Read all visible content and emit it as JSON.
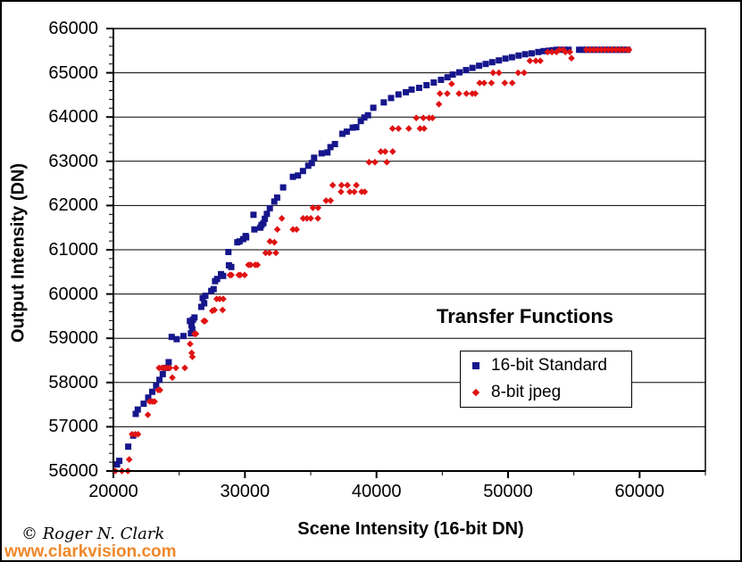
{
  "chart_data": {
    "type": "scatter",
    "title": "Transfer Functions",
    "xlabel": "Scene Intensity (16-bit DN)",
    "ylabel": "Output Intensity (DN)",
    "xlim": [
      20000,
      65000
    ],
    "ylim": [
      56000,
      66000
    ],
    "xticks": [
      20000,
      30000,
      40000,
      50000,
      60000
    ],
    "yticks": [
      56000,
      57000,
      58000,
      59000,
      60000,
      61000,
      62000,
      63000,
      64000,
      65000,
      66000
    ],
    "x_minor_step": 5000,
    "y_minor_step": 200,
    "grid": "horizontal-major",
    "legend_position": "inside-right",
    "plot_bg": "#ffffff",
    "series": [
      {
        "name": "16-bit Standard",
        "marker": "square",
        "color": "#16168c",
        "points": [
          [
            20280,
            56150
          ],
          [
            20450,
            56230
          ],
          [
            21130,
            56550
          ],
          [
            21510,
            56800
          ],
          [
            21700,
            57290
          ],
          [
            21850,
            57390
          ],
          [
            22300,
            57520
          ],
          [
            22650,
            57660
          ],
          [
            22950,
            57790
          ],
          [
            23250,
            57930
          ],
          [
            23500,
            58060
          ],
          [
            23750,
            58190
          ],
          [
            24000,
            58330
          ],
          [
            24200,
            58460
          ],
          [
            24430,
            59030
          ],
          [
            24810,
            58980
          ],
          [
            25330,
            59050
          ],
          [
            25820,
            59390
          ],
          [
            25890,
            59110
          ],
          [
            25940,
            59290
          ],
          [
            26000,
            59200
          ],
          [
            26050,
            59420
          ],
          [
            26160,
            59470
          ],
          [
            26680,
            59710
          ],
          [
            26790,
            59910
          ],
          [
            26900,
            59790
          ],
          [
            26990,
            59960
          ],
          [
            27440,
            60070
          ],
          [
            27620,
            60110
          ],
          [
            27730,
            60290
          ],
          [
            27890,
            60340
          ],
          [
            28180,
            60450
          ],
          [
            28340,
            60410
          ],
          [
            28740,
            60950
          ],
          [
            28780,
            60650
          ],
          [
            28960,
            60610
          ],
          [
            29420,
            61170
          ],
          [
            29590,
            61190
          ],
          [
            29860,
            61240
          ],
          [
            30050,
            61310
          ],
          [
            30090,
            61280
          ],
          [
            30650,
            61790
          ],
          [
            30720,
            61460
          ],
          [
            31170,
            61500
          ],
          [
            31260,
            61560
          ],
          [
            31400,
            61600
          ],
          [
            31510,
            61700
          ],
          [
            31670,
            61810
          ],
          [
            31890,
            61940
          ],
          [
            32230,
            62090
          ],
          [
            32450,
            62180
          ],
          [
            32900,
            62410
          ],
          [
            33640,
            62650
          ],
          [
            34030,
            62680
          ],
          [
            34410,
            62780
          ],
          [
            34810,
            62900
          ],
          [
            35080,
            62960
          ],
          [
            35260,
            63080
          ],
          [
            35830,
            63180
          ],
          [
            36270,
            63200
          ],
          [
            36500,
            63320
          ],
          [
            36840,
            63390
          ],
          [
            37400,
            63620
          ],
          [
            37740,
            63670
          ],
          [
            38190,
            63760
          ],
          [
            38460,
            63770
          ],
          [
            38810,
            63910
          ],
          [
            39080,
            63990
          ],
          [
            39350,
            64040
          ],
          [
            39760,
            64210
          ],
          [
            40550,
            64330
          ],
          [
            41110,
            64430
          ],
          [
            41670,
            64510
          ],
          [
            42230,
            64560
          ],
          [
            42670,
            64620
          ],
          [
            43240,
            64660
          ],
          [
            43800,
            64720
          ],
          [
            44350,
            64780
          ],
          [
            44900,
            64840
          ],
          [
            45400,
            64900
          ],
          [
            45800,
            64960
          ],
          [
            46300,
            65010
          ],
          [
            46800,
            65060
          ],
          [
            47300,
            65110
          ],
          [
            47800,
            65160
          ],
          [
            48300,
            65200
          ],
          [
            48800,
            65240
          ],
          [
            49300,
            65280
          ],
          [
            49800,
            65320
          ],
          [
            50300,
            65350
          ],
          [
            50800,
            65390
          ],
          [
            51300,
            65420
          ],
          [
            51800,
            65440
          ],
          [
            52300,
            65470
          ],
          [
            52700,
            65490
          ],
          [
            53100,
            65500
          ],
          [
            53400,
            65510
          ],
          [
            53700,
            65520
          ],
          [
            54000,
            65520
          ],
          [
            54300,
            65520
          ],
          [
            54600,
            65520
          ],
          [
            55400,
            65520
          ],
          [
            55700,
            65520
          ],
          [
            56000,
            65520
          ],
          [
            56280,
            65520
          ],
          [
            56560,
            65520
          ],
          [
            56840,
            65520
          ],
          [
            57120,
            65520
          ],
          [
            57400,
            65520
          ],
          [
            57680,
            65520
          ],
          [
            57960,
            65520
          ],
          [
            58240,
            65520
          ],
          [
            58520,
            65520
          ],
          [
            58800,
            65520
          ],
          [
            59080,
            65520
          ]
        ]
      },
      {
        "name": "8-bit jpeg",
        "marker": "diamond",
        "color": "#e01212",
        "points": [
          [
            20150,
            56000
          ],
          [
            20650,
            56000
          ],
          [
            21100,
            56000
          ],
          [
            21200,
            56260
          ],
          [
            21420,
            56830
          ],
          [
            21660,
            56830
          ],
          [
            21870,
            56830
          ],
          [
            22620,
            57270
          ],
          [
            22760,
            57570
          ],
          [
            22960,
            57570
          ],
          [
            23130,
            57570
          ],
          [
            23400,
            57830
          ],
          [
            23470,
            58330
          ],
          [
            23540,
            57830
          ],
          [
            23680,
            58330
          ],
          [
            23880,
            58330
          ],
          [
            24080,
            58330
          ],
          [
            24280,
            58330
          ],
          [
            24480,
            58110
          ],
          [
            24750,
            58330
          ],
          [
            25430,
            58330
          ],
          [
            25830,
            58870
          ],
          [
            25950,
            58670
          ],
          [
            26010,
            58580
          ],
          [
            26170,
            59100
          ],
          [
            26280,
            59100
          ],
          [
            26870,
            59390
          ],
          [
            26970,
            59390
          ],
          [
            27520,
            59620
          ],
          [
            27680,
            59640
          ],
          [
            27850,
            59890
          ],
          [
            28080,
            59890
          ],
          [
            28300,
            59640
          ],
          [
            28350,
            59890
          ],
          [
            28860,
            60430
          ],
          [
            28970,
            60430
          ],
          [
            29530,
            60430
          ],
          [
            29650,
            60430
          ],
          [
            29980,
            60430
          ],
          [
            30260,
            60660
          ],
          [
            30440,
            60660
          ],
          [
            30780,
            60660
          ],
          [
            30950,
            60660
          ],
          [
            31570,
            60930
          ],
          [
            31860,
            60930
          ],
          [
            31900,
            61190
          ],
          [
            32240,
            61170
          ],
          [
            32350,
            60930
          ],
          [
            32460,
            61460
          ],
          [
            32800,
            61710
          ],
          [
            33650,
            61460
          ],
          [
            33920,
            61460
          ],
          [
            34420,
            61710
          ],
          [
            34710,
            61710
          ],
          [
            35000,
            61710
          ],
          [
            35160,
            61950
          ],
          [
            35540,
            61710
          ],
          [
            35560,
            61950
          ],
          [
            36170,
            62110
          ],
          [
            36510,
            62110
          ],
          [
            36670,
            62460
          ],
          [
            37300,
            62310
          ],
          [
            37340,
            62460
          ],
          [
            37790,
            62460
          ],
          [
            37970,
            62310
          ],
          [
            38310,
            62310
          ],
          [
            38470,
            62460
          ],
          [
            38870,
            62310
          ],
          [
            39100,
            62310
          ],
          [
            39430,
            62980
          ],
          [
            39880,
            62980
          ],
          [
            40330,
            63220
          ],
          [
            40660,
            63220
          ],
          [
            40780,
            62980
          ],
          [
            41230,
            63220
          ],
          [
            41220,
            63740
          ],
          [
            41670,
            63740
          ],
          [
            42450,
            63740
          ],
          [
            43020,
            63980
          ],
          [
            43310,
            63740
          ],
          [
            43560,
            63980
          ],
          [
            43620,
            63740
          ],
          [
            44000,
            63980
          ],
          [
            44260,
            63980
          ],
          [
            44750,
            64290
          ],
          [
            44820,
            64530
          ],
          [
            45380,
            64530
          ],
          [
            45710,
            64750
          ],
          [
            46270,
            64530
          ],
          [
            46830,
            64530
          ],
          [
            47280,
            64530
          ],
          [
            47510,
            64530
          ],
          [
            47840,
            64770
          ],
          [
            48180,
            64770
          ],
          [
            48740,
            64770
          ],
          [
            48860,
            65000
          ],
          [
            49310,
            65000
          ],
          [
            49750,
            64770
          ],
          [
            50320,
            64770
          ],
          [
            50770,
            65000
          ],
          [
            51220,
            65000
          ],
          [
            51660,
            65270
          ],
          [
            52110,
            65270
          ],
          [
            52450,
            65270
          ],
          [
            53010,
            65470
          ],
          [
            53340,
            65470
          ],
          [
            53680,
            65470
          ],
          [
            53900,
            65520
          ],
          [
            54200,
            65520
          ],
          [
            54360,
            65470
          ],
          [
            54700,
            65470
          ],
          [
            54820,
            65330
          ],
          [
            55950,
            65520
          ],
          [
            56230,
            65520
          ],
          [
            56510,
            65520
          ],
          [
            56790,
            65520
          ],
          [
            57070,
            65520
          ],
          [
            57350,
            65520
          ],
          [
            57630,
            65520
          ],
          [
            57910,
            65520
          ],
          [
            58190,
            65520
          ],
          [
            58470,
            65520
          ],
          [
            58750,
            65520
          ],
          [
            59030,
            65520
          ],
          [
            59200,
            65520
          ]
        ]
      }
    ]
  },
  "legend": {
    "items": [
      {
        "label": "16-bit Standard",
        "color": "#16168c",
        "marker": "square"
      },
      {
        "label": "8-bit jpeg",
        "color": "#e01212",
        "marker": "diamond"
      }
    ]
  },
  "footer": {
    "copyright": "© Roger N. Clark",
    "url": "www.clarkvision.com",
    "url_color": "#f0882a"
  },
  "colors": {
    "axis": "#000000",
    "grid": "#000000",
    "background": "#ffffff"
  }
}
